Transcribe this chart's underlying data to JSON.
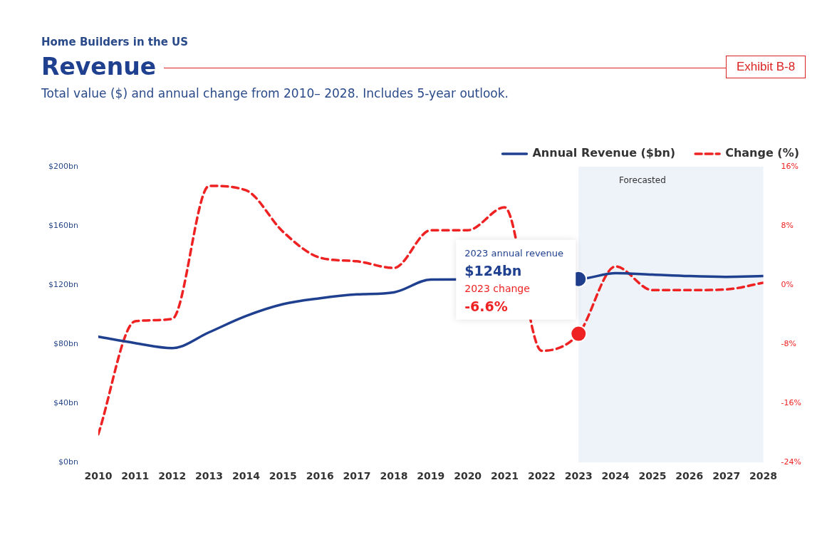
{
  "chart_data": {
    "type": "line",
    "title": "Revenue",
    "subtitle": "Total value ($) and annual change from 2010– 2028. Includes 5-year outlook.",
    "annotations": [
      "Home Builders in the US",
      "Exhibit B-8",
      "2023 annual revenue",
      "$124bn",
      "2023 change",
      "-6.6%"
    ],
    "x": [
      2010,
      2011,
      2012,
      2013,
      2014,
      2015,
      2016,
      2017,
      2018,
      2019,
      2020,
      2021,
      2022,
      2023,
      2024,
      2025,
      2026,
      2027,
      2028
    ],
    "xlim": [
      2010,
      2028
    ],
    "xticks": [
      2010,
      2011,
      2012,
      2013,
      2014,
      2015,
      2016,
      2017,
      2018,
      2019,
      2020,
      2021,
      2022,
      2023,
      2024,
      2025,
      2026,
      2027,
      2028
    ],
    "series": [
      {
        "name": "Annual Revenue ($bn)",
        "color": "#1f3f8f",
        "line_style": "solid",
        "values": [
          85,
          80.7,
          77.3,
          88,
          99,
          107,
          111,
          113.6,
          115,
          123.6,
          null,
          null,
          null,
          124,
          128,
          127,
          126,
          125.5,
          126
        ]
      },
      {
        "name": "Change (%)",
        "color": "#ee2222",
        "axis": "y2",
        "line_style": "dashed",
        "values": [
          -20.2,
          -4.9,
          -4.6,
          13.4,
          12.8,
          7.2,
          3.7,
          3.2,
          2.3,
          7.4,
          7.4,
          10.5,
          -8.9,
          -6.6,
          2.5,
          -0.7,
          -0.7,
          -0.6,
          0.3
        ]
      },
      {
        "type": "scatter",
        "color": "#1f3f8f",
        "marker": "circle",
        "x": [
          2023
        ],
        "values": [
          124
        ]
      },
      {
        "type": "scatter",
        "color": "#ee2222",
        "marker": "circle",
        "axis": "y2",
        "x": [
          2023
        ],
        "values": [
          -6.6
        ]
      }
    ],
    "ylim": [
      0,
      200
    ],
    "yticks": [
      {
        "value": 0,
        "label": "$0bn"
      },
      {
        "value": 40,
        "label": "$40bn"
      },
      {
        "value": 80,
        "label": "$80bn"
      },
      {
        "value": 120,
        "label": "$120bn"
      },
      {
        "value": 160,
        "label": "$160bn"
      },
      {
        "value": 200,
        "label": "$200bn"
      }
    ],
    "y2lim": [
      -24,
      16
    ],
    "y2ticks": [
      {
        "value": -24,
        "label": "-24%"
      },
      {
        "value": -16,
        "label": "-16%"
      },
      {
        "value": -8,
        "label": "-8%"
      },
      {
        "value": 0,
        "label": "0%"
      },
      {
        "value": 8,
        "label": "8%"
      },
      {
        "value": 16,
        "label": "16%"
      }
    ],
    "bands": [
      {
        "axis": "x",
        "from": 2023,
        "to": 2028,
        "label": "Forecasted",
        "color": "#eef3fa"
      }
    ],
    "legend": "top right",
    "marker": "none"
  }
}
